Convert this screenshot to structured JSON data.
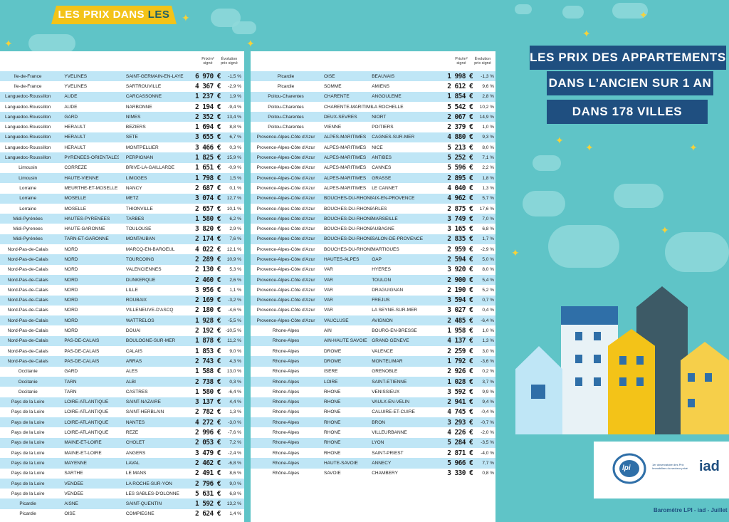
{
  "banner": {
    "part1": "LES PRIX DANS",
    "part2": "LES VILLES"
  },
  "title": {
    "line1": "LES PRIX DES APPARTEMENTS",
    "line2": "DANS L’ANCIEN SUR 1 AN",
    "line3": "DANS 178 VILLES"
  },
  "table_header": {
    "price": "Prix/m² signé",
    "evolution": "Évolution prix signé"
  },
  "left_rows": [
    [
      "Île-de-France",
      "YVELINES",
      "SAINT-GERMAIN-EN-LAYE",
      "6 970 €",
      "-1,5 %"
    ],
    [
      "Île-de-France",
      "YVELINES",
      "SARTROUVILLE",
      "4 367 €",
      "-2,9 %"
    ],
    [
      "Languedoc-Roussillon",
      "AUDE",
      "CARCASSONNE",
      "1 237 €",
      "1,9 %"
    ],
    [
      "Languedoc-Roussillon",
      "AUDE",
      "NARBONNE",
      "2 194 €",
      "-9,4 %"
    ],
    [
      "Languedoc-Roussillon",
      "GARD",
      "NÎMES",
      "2 352 €",
      "13,4 %"
    ],
    [
      "Languedoc-Roussillon",
      "HERAULT",
      "BÉZIERS",
      "1 694 €",
      "8,8 %"
    ],
    [
      "Languedoc-Roussillon",
      "HERAULT",
      "SETE",
      "3 655 €",
      "6,7 %"
    ],
    [
      "Languedoc-Roussillon",
      "HERAULT",
      "MONTPELLIER",
      "3 466 €",
      "0,3 %"
    ],
    [
      "Languedoc-Roussillon",
      "PYRENEES-ORIENTALES",
      "PERPIGNAN",
      "1 825 €",
      "15,9 %"
    ],
    [
      "Limousin",
      "CORREZE",
      "BRIVE-LA-GAILLARDE",
      "1 651 €",
      "-0,9 %"
    ],
    [
      "Limousin",
      "HAUTE-VIENNE",
      "LIMOGES",
      "1 798 €",
      "1,5 %"
    ],
    [
      "Lorraine",
      "MEURTHE-ET-MOSELLE",
      "NANCY",
      "2 687 €",
      "0,1 %"
    ],
    [
      "Lorraine",
      "MOSELLE",
      "METZ",
      "3 074 €",
      "12,7 %"
    ],
    [
      "Lorraine",
      "MOSELLE",
      "THIONVILLE",
      "2 657 €",
      "10,1 %"
    ],
    [
      "Midi-Pyrénées",
      "HAUTES-PYRÉNÉES",
      "TARBES",
      "1 580 €",
      "6,2 %"
    ],
    [
      "Midi-Pyrenees",
      "HAUTE-GARONNE",
      "TOULOUSE",
      "3 820 €",
      "2,9 %"
    ],
    [
      "Midi-Pyrénées",
      "TARN-ET-GARONNE",
      "MONTAUBAN",
      "2 174 €",
      "7,6 %"
    ],
    [
      "Nord-Pas-de-Calais",
      "NORD",
      "MARCQ-EN-BAROEUL",
      "4 022 €",
      "12,1 %"
    ],
    [
      "Nord-Pas-de-Calais",
      "NORD",
      "TOURCOING",
      "2 289 €",
      "10,9 %"
    ],
    [
      "Nord-Pas-de-Calais",
      "NORD",
      "VALENCIENNES",
      "2 130 €",
      "5,3 %"
    ],
    [
      "Nord-Pas-de-Calais",
      "NORD",
      "DUNKERQUE",
      "2 460 €",
      "2,6 %"
    ],
    [
      "Nord-Pas-de-Calais",
      "NORD",
      "LILLE",
      "3 956 €",
      "1,1 %"
    ],
    [
      "Nord-Pas-de-Calais",
      "NORD",
      "ROUBAIX",
      "2 169 €",
      "-3,2 %"
    ],
    [
      "Nord-Pas-de-Calais",
      "NORD",
      "VILLENEUVE-D'ASCQ",
      "2 180 €",
      "-4,6 %"
    ],
    [
      "Nord-Pas-de-Calais",
      "NORD",
      "WATTRELOS",
      "1 928 €",
      "-5,5 %"
    ],
    [
      "Nord-Pas-de-Calais",
      "NORD",
      "DOUAI",
      "2 192 €",
      "-10,5 %"
    ],
    [
      "Nord-Pas-de-Calais",
      "PAS-DE-CALAIS",
      "BOULOGNE-SUR-MER",
      "1 878 €",
      "11,2 %"
    ],
    [
      "Nord-Pas-de-Calais",
      "PAS-DE-CALAIS",
      "CALAIS",
      "1 853 €",
      "9,0 %"
    ],
    [
      "Nord-Pas-de-Calais",
      "PAS-DE-CALAIS",
      "ARRAS",
      "2 743 €",
      "4,3 %"
    ],
    [
      "Occitanie",
      "GARD",
      "ALES",
      "1 588 €",
      "13,0 %"
    ],
    [
      "Occitanie",
      "TARN",
      "ALBI",
      "2 738 €",
      "0,3 %"
    ],
    [
      "Occitanie",
      "TARN",
      "CASTRES",
      "1 580 €",
      "-6,4 %"
    ],
    [
      "Pays de la Loire",
      "LOIRE-ATLANTIQUE",
      "SAINT-NAZAIRE",
      "3 137 €",
      "4,4 %"
    ],
    [
      "Pays de la Loire",
      "LOIRE-ATLANTIQUE",
      "SAINT-HERBLAIN",
      "2 782 €",
      "1,3 %"
    ],
    [
      "Pays de la Loire",
      "LOIRE-ATLANTIQUE",
      "NANTES",
      "4 272 €",
      "-3,0 %"
    ],
    [
      "Pays de la Loire",
      "LOIRE-ATLANTIQUE",
      "REZE",
      "2 996 €",
      "-7,6 %"
    ],
    [
      "Pays de la Loire",
      "MAINE-ET-LOIRE",
      "CHOLET",
      "2 053 €",
      "7,2 %"
    ],
    [
      "Pays de la Loire",
      "MAINE-ET-LOIRE",
      "ANGERS",
      "3 479 €",
      "-2,4 %"
    ],
    [
      "Pays de la Loire",
      "MAYENNE",
      "LAVAL",
      "2 462 €",
      "-6,8 %"
    ],
    [
      "Pays de la Loire",
      "SARTHE",
      "LE MANS",
      "2 491 €",
      "8,6 %"
    ],
    [
      "Pays de la Loire",
      "VENDÉE",
      "LA ROCHE-SUR-YON",
      "2 796 €",
      "9,0 %"
    ],
    [
      "Pays de la Loire",
      "VENDÉE",
      "LES SABLES-D'OLONNE",
      "5 631 €",
      "6,8 %"
    ],
    [
      "Picardie",
      "AISNE",
      "SAINT-QUENTIN",
      "1 592 €",
      "13,2 %"
    ],
    [
      "Picardie",
      "OISE",
      "COMPIEGNE",
      "2 624 €",
      "1,4 %"
    ]
  ],
  "right_rows": [
    [
      "Picardie",
      "OISE",
      "BEAUVAIS",
      "1 998 €",
      "-1,3 %"
    ],
    [
      "Picardie",
      "SOMME",
      "AMIENS",
      "2 612 €",
      "9,6 %"
    ],
    [
      "Poitou-Charentes",
      "CHARENTE",
      "ANGOULEME",
      "1 854 €",
      "2,8 %"
    ],
    [
      "Poitou-Charentes",
      "CHARENTE-MARITIME",
      "LA ROCHELLE",
      "5 542 €",
      "10,2 %"
    ],
    [
      "Poitou-Charentes",
      "DEUX-SÈVRES",
      "NIORT",
      "2 067 €",
      "14,9 %"
    ],
    [
      "Poitou-Charentes",
      "VIENNE",
      "POITIERS",
      "2 379 €",
      "1,0 %"
    ],
    [
      "Provence-Alpes-Côte d'Azur",
      "ALPES-MARITIMES",
      "CAGNES-SUR-MER",
      "4 880 €",
      "9,3 %"
    ],
    [
      "Provence-Alpes-Côte d'Azur",
      "ALPES-MARITIMES",
      "NICE",
      "5 213 €",
      "8,0 %"
    ],
    [
      "Provence-Alpes-Côte d'Azur",
      "ALPES-MARITIMES",
      "ANTIBES",
      "5 252 €",
      "7,1 %"
    ],
    [
      "Provence-Alpes-Côte d'Azur",
      "ALPES-MARITIMES",
      "CANNES",
      "5 596 €",
      "2,2 %"
    ],
    [
      "Provence-Alpes-Côte d'Azur",
      "ALPES-MARITIMES",
      "GRASSE",
      "2 895 €",
      "1,8 %"
    ],
    [
      "Provence-Alpes-Côte d'Azur",
      "ALPES-MARITIMES",
      "LE CANNET",
      "4 040 €",
      "1,3 %"
    ],
    [
      "Provence-Alpes-Côte d'Azur",
      "BOUCHES-DU-RHONE",
      "AIX-EN-PROVENCE",
      "4 962 €",
      "5,7 %"
    ],
    [
      "Provence-Alpes-Côte d'Azur",
      "BOUCHES-DU-RHÔNE",
      "ARLES",
      "2 875 €",
      "17,6 %"
    ],
    [
      "Provence-Alpes-Côte d'Azur",
      "BOUCHES-DU-RHÔNE",
      "MARSEILLE",
      "3 749 €",
      "7,0 %"
    ],
    [
      "Provence-Alpes-Côte d'Azur",
      "BOUCHES-DU-RHÔNE",
      "AUBAGNE",
      "3 165 €",
      "6,8 %"
    ],
    [
      "Provence-Alpes-Côte d'Azur",
      "BOUCHES-DU-RHÔNE",
      "SALON-DE-PROVENCE",
      "2 835 €",
      "1,7 %"
    ],
    [
      "Provence-Alpes-Côte d'Azur",
      "BOUCHES-DU-RHÔNE",
      "MARTIGUES",
      "2 959 €",
      "-2,9 %"
    ],
    [
      "Provence-Alpes-Côte d'Azur",
      "HAUTES-ALPES",
      "GAP",
      "2 594 €",
      "5,0 %"
    ],
    [
      "Provence-Alpes-Côte d'Azur",
      "VAR",
      "HYERES",
      "3 920 €",
      "8,0 %"
    ],
    [
      "Provence-Alpes-Côte d'Azur",
      "VAR",
      "TOULON",
      "2 900 €",
      "5,4 %"
    ],
    [
      "Provence-Alpes-Côte d'Azur",
      "VAR",
      "DRAGUIGNAN",
      "2 190 €",
      "5,2 %"
    ],
    [
      "Provence-Alpes-Côte d'Azur",
      "VAR",
      "FREJUS",
      "3 594 €",
      "0,7 %"
    ],
    [
      "Provence-Alpes-Côte d'Azur",
      "VAR",
      "LA SEYNE-SUR-MER",
      "3 027 €",
      "0,4 %"
    ],
    [
      "Provence-Alpes-Côte d'Azur",
      "VAUCLUSE",
      "AVIGNON",
      "2 485 €",
      "-6,4 %"
    ],
    [
      "Rhone-Alpes",
      "AIN",
      "BOURG-EN-BRESSE",
      "1 958 €",
      "1,0 %"
    ],
    [
      "Rhone-Alpes",
      "AIN-HAUTE SAVOIE",
      "GRAND GENEVE",
      "4 137 €",
      "1,3 %"
    ],
    [
      "Rhone-Alpes",
      "DROME",
      "VALENCE",
      "2 259 €",
      "3,0 %"
    ],
    [
      "Rhone-Alpes",
      "DROME",
      "MONTELIMAR",
      "1 792 €",
      "-3,6 %"
    ],
    [
      "Rhone-Alpes",
      "ISERE",
      "GRENOBLE",
      "2 926 €",
      "0,2 %"
    ],
    [
      "Rhone-Alpes",
      "LOIRE",
      "SAINT-ÉTIENNE",
      "1 028 €",
      "3,7 %"
    ],
    [
      "Rhone-Alpes",
      "RHONE",
      "VÉNISSIEUX",
      "3 592 €",
      "9,9 %"
    ],
    [
      "Rhone-Alpes",
      "RHONE",
      "VAULX-EN-VELIN",
      "2 941 €",
      "9,4 %"
    ],
    [
      "Rhone-Alpes",
      "RHONE",
      "CALUIRE-ET-CUIRE",
      "4 745 €",
      "-0,4 %"
    ],
    [
      "Rhone-Alpes",
      "RHONE",
      "BRON",
      "3 293 €",
      "-0,7 %"
    ],
    [
      "Rhone-Alpes",
      "RHONE",
      "VILLEURBANNE",
      "4 226 €",
      "-2,0 %"
    ],
    [
      "Rhone-Alpes",
      "RHONE",
      "LYON",
      "5 284 €",
      "-3,5 %"
    ],
    [
      "Rhone-Alpes",
      "RHONE",
      "SAINT-PRIEST",
      "2 871 €",
      "-4,0 %"
    ],
    [
      "Rhone-Alpes",
      "HAUTE-SAVOIE",
      "ANNECY",
      "5 966 €",
      "7,7 %"
    ],
    [
      "Rhône-Alpes",
      "SAVOIE",
      "CHAMBERY",
      "3 330 €",
      "0,8 %"
    ]
  ],
  "logos": {
    "lpi": "lpi",
    "lpi_caption": "1er observatoire des Prix Immobiliers du secteur privé",
    "iad": "iad"
  },
  "credit": "Baromètre LPI - iad - Juillet"
}
